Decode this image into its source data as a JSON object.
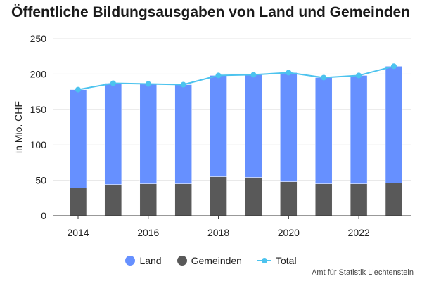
{
  "chart_data": {
    "type": "bar",
    "title": "Öffentliche Bildungsausgaben von Land und Gemeinden",
    "ylabel": "in Mio. CHF",
    "xlabel": "",
    "ylim": [
      0,
      250
    ],
    "yticks": [
      0,
      50,
      100,
      150,
      200,
      250
    ],
    "x": [
      2014,
      2015,
      2016,
      2017,
      2018,
      2019,
      2020,
      2021,
      2022,
      2023
    ],
    "xticks": [
      "2014",
      "2016",
      "2018",
      "2020",
      "2022"
    ],
    "stacked": true,
    "grid": true,
    "legend_position": "bottom",
    "series": [
      {
        "name": "Gemeinden",
        "kind": "bar",
        "color": "#595959",
        "values": [
          39,
          44,
          45,
          45,
          55,
          54,
          48,
          45,
          45,
          46
        ]
      },
      {
        "name": "Land",
        "kind": "bar",
        "color": "#6690ff",
        "values": [
          139,
          143,
          141,
          140,
          143,
          145,
          154,
          150,
          153,
          165
        ]
      },
      {
        "name": "Total",
        "kind": "line",
        "color": "#4cc3ee",
        "values": [
          178,
          187,
          186,
          185,
          198,
          199,
          202,
          195,
          198,
          211
        ]
      }
    ]
  },
  "legend": {
    "land": "Land",
    "gemeinden": "Gemeinden",
    "total": "Total"
  },
  "source": "Amt für Statistik Liechtenstein"
}
